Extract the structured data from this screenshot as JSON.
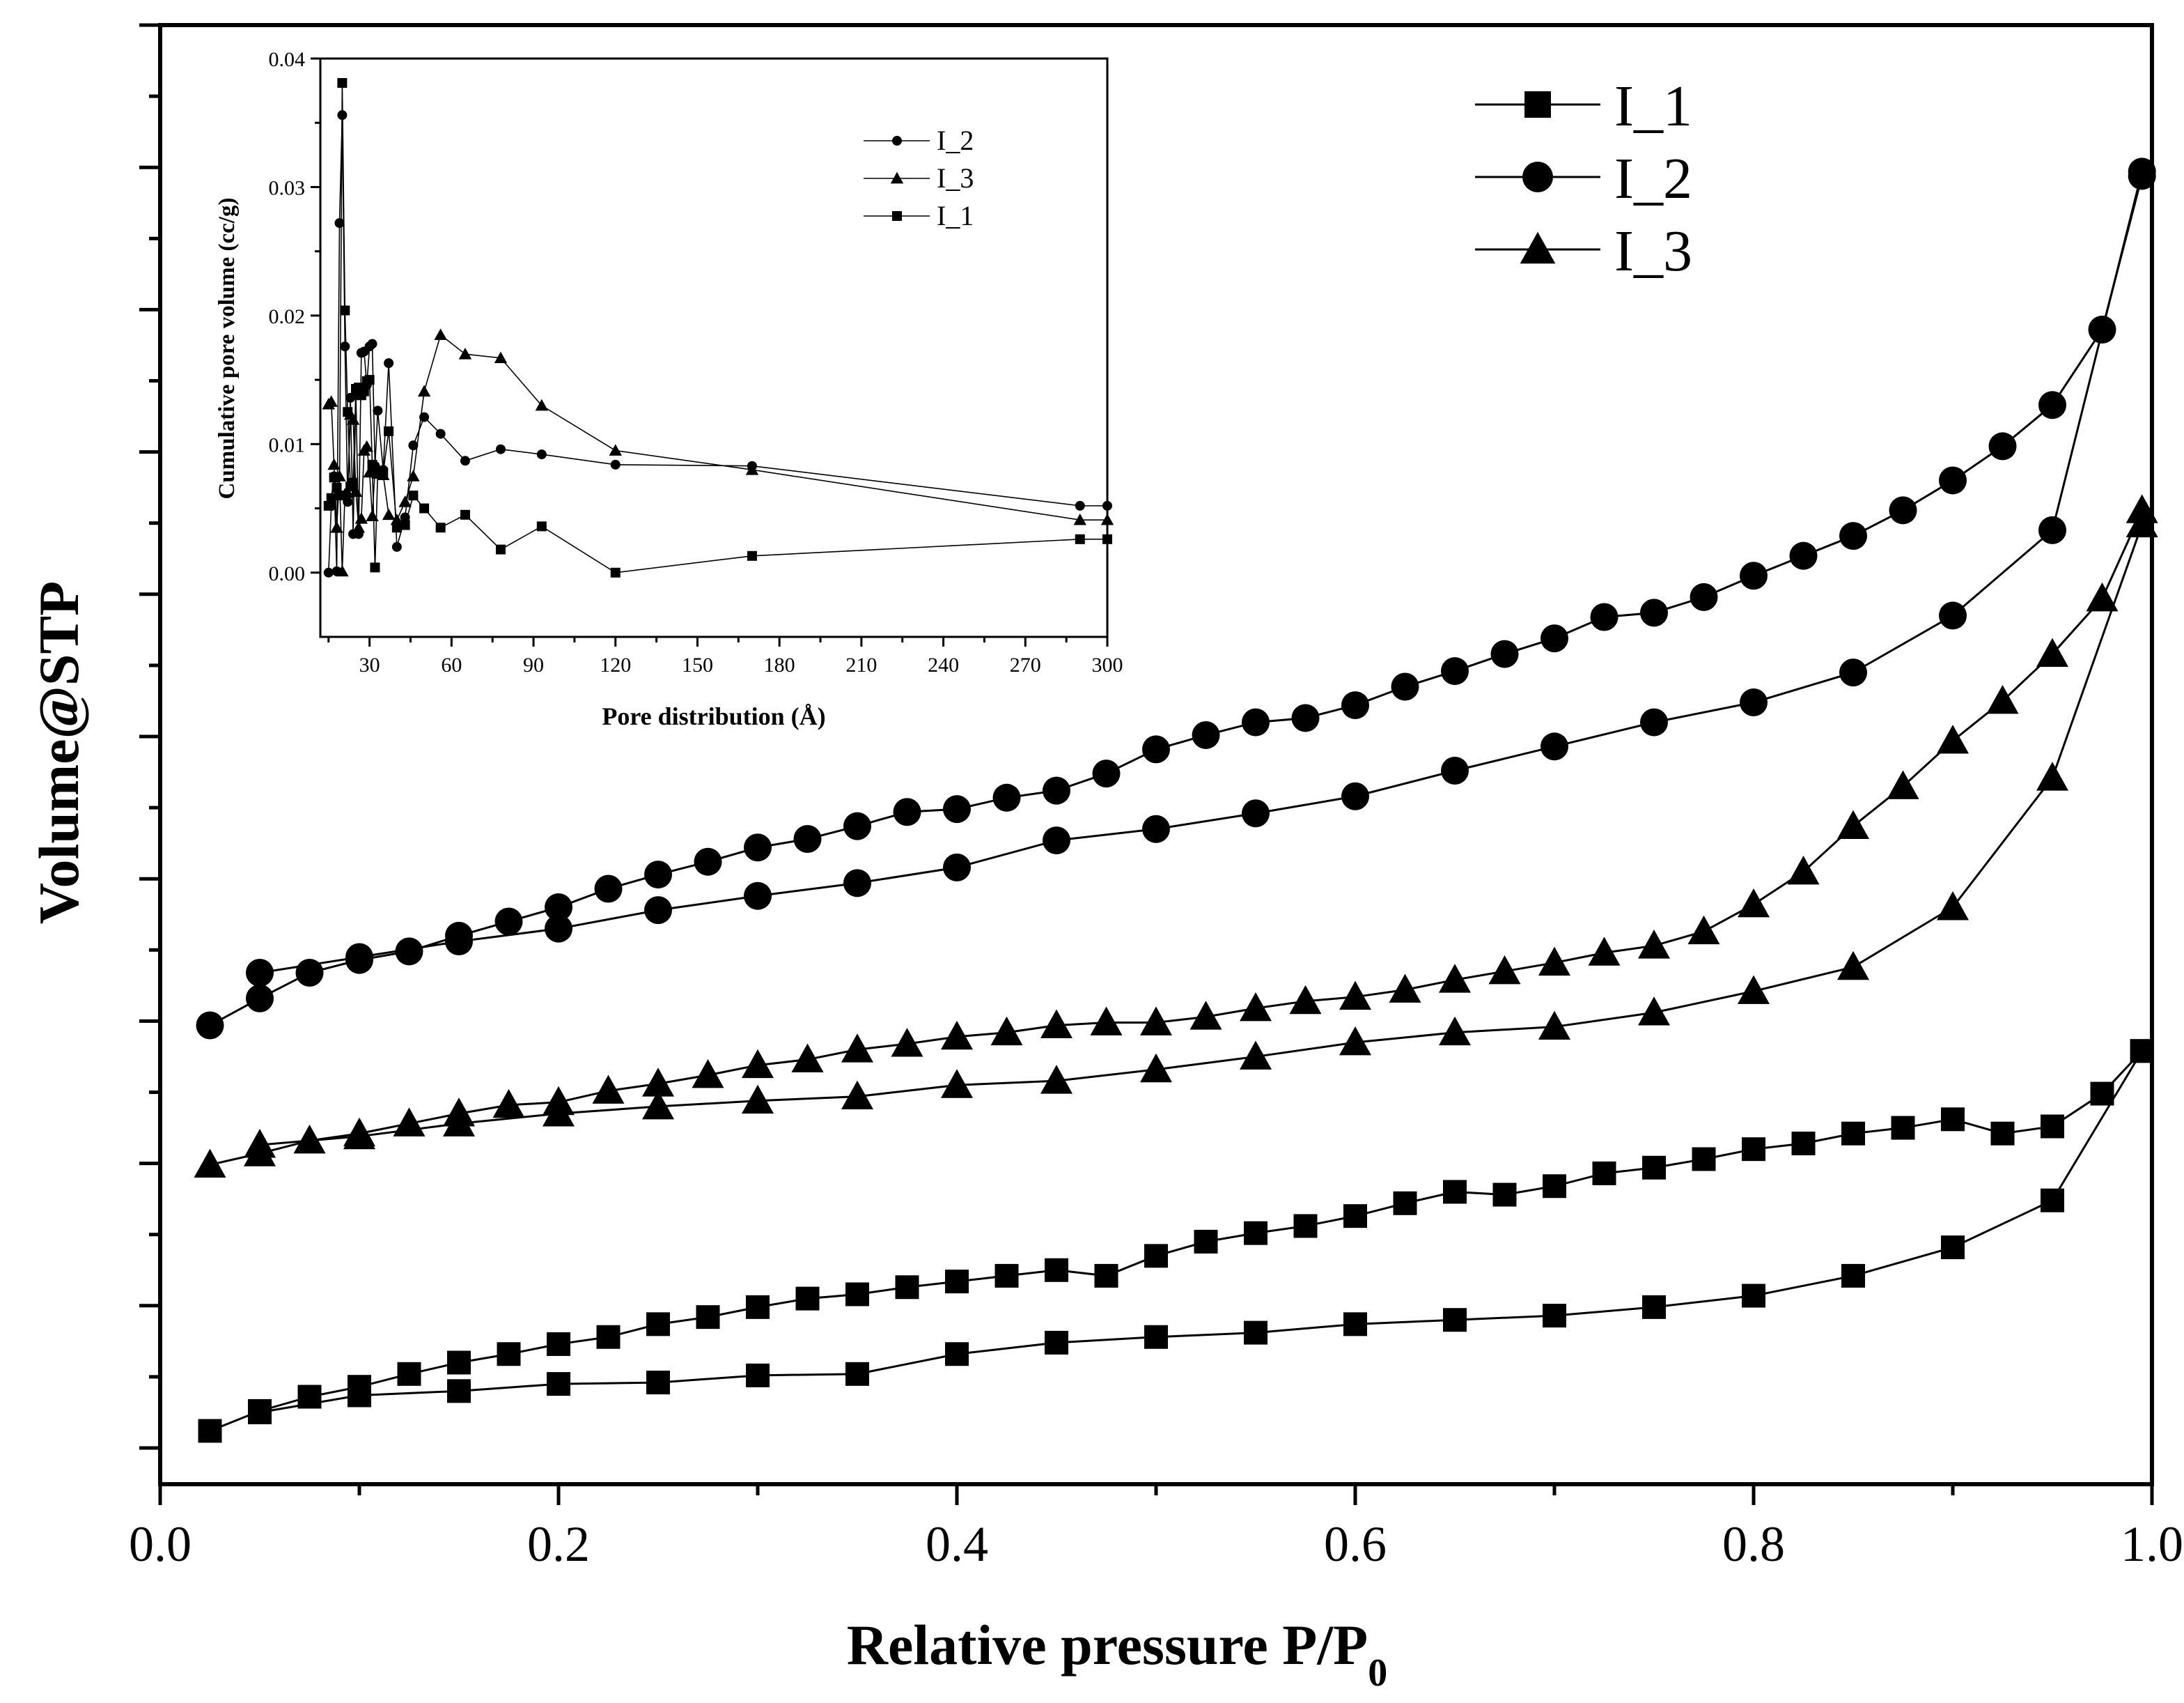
{
  "chart_data": [
    {
      "id": "main",
      "type": "scatter",
      "title": "",
      "xlabel_main": "Relative pressure P/P",
      "xlabel_sub": "0",
      "ylabel": "Volume@STP",
      "xlim": [
        0.0,
        1.0
      ],
      "ylim": [
        0,
        10
      ],
      "x_ticks": [
        "0.0",
        "0.2",
        "0.4",
        "0.6",
        "0.8",
        "1.0"
      ],
      "legend_position": "top-right",
      "series": [
        {
          "name": "I_1",
          "marker": "square",
          "adsorption": {
            "x": [
              0.025,
              0.05,
              0.075,
              0.1,
              0.125,
              0.15,
              0.175,
              0.2,
              0.225,
              0.25,
              0.275,
              0.3,
              0.325,
              0.35,
              0.375,
              0.4,
              0.425,
              0.45,
              0.475,
              0.5,
              0.525,
              0.55,
              0.575,
              0.6,
              0.625,
              0.65,
              0.675,
              0.7,
              0.725,
              0.75,
              0.775,
              0.8,
              0.825,
              0.85,
              0.875,
              0.9,
              0.925,
              0.95,
              0.975,
              0.995
            ],
            "y": [
              0.12,
              0.26,
              0.36,
              0.43,
              0.52,
              0.6,
              0.66,
              0.73,
              0.78,
              0.87,
              0.92,
              0.99,
              1.05,
              1.08,
              1.13,
              1.17,
              1.21,
              1.25,
              1.21,
              1.35,
              1.45,
              1.51,
              1.56,
              1.63,
              1.72,
              1.8,
              1.78,
              1.84,
              1.93,
              1.97,
              2.03,
              2.1,
              2.14,
              2.21,
              2.25,
              2.31,
              2.21,
              2.26,
              2.49,
              2.79
            ]
          },
          "desorption": {
            "x": [
              0.995,
              0.95,
              0.9,
              0.85,
              0.8,
              0.75,
              0.7,
              0.65,
              0.6,
              0.55,
              0.5,
              0.45,
              0.4,
              0.35,
              0.3,
              0.25,
              0.2,
              0.15,
              0.1,
              0.05
            ],
            "y": [
              2.79,
              1.74,
              1.41,
              1.21,
              1.07,
              0.99,
              0.93,
              0.9,
              0.87,
              0.81,
              0.78,
              0.74,
              0.66,
              0.52,
              0.51,
              0.46,
              0.45,
              0.4,
              0.37,
              0.25
            ]
          }
        },
        {
          "name": "I_2",
          "marker": "circle",
          "adsorption": {
            "x": [
              0.025,
              0.05,
              0.075,
              0.1,
              0.125,
              0.15,
              0.175,
              0.2,
              0.225,
              0.25,
              0.275,
              0.3,
              0.325,
              0.35,
              0.375,
              0.4,
              0.425,
              0.45,
              0.475,
              0.5,
              0.525,
              0.55,
              0.575,
              0.6,
              0.625,
              0.65,
              0.675,
              0.7,
              0.725,
              0.75,
              0.775,
              0.8,
              0.825,
              0.85,
              0.875,
              0.9,
              0.925,
              0.95,
              0.975,
              0.995
            ],
            "y": [
              2.97,
              3.16,
              3.34,
              3.43,
              3.49,
              3.6,
              3.7,
              3.8,
              3.93,
              4.03,
              4.12,
              4.22,
              4.28,
              4.37,
              4.47,
              4.49,
              4.57,
              4.62,
              4.74,
              4.91,
              5.01,
              5.1,
              5.13,
              5.22,
              5.35,
              5.46,
              5.58,
              5.69,
              5.84,
              5.87,
              5.98,
              6.13,
              6.27,
              6.41,
              6.59,
              6.8,
              7.04,
              7.33,
              7.86,
              8.94
            ]
          },
          "desorption": {
            "x": [
              0.995,
              0.95,
              0.9,
              0.85,
              0.8,
              0.75,
              0.7,
              0.65,
              0.6,
              0.55,
              0.5,
              0.45,
              0.4,
              0.35,
              0.3,
              0.25,
              0.2,
              0.15,
              0.1,
              0.05
            ],
            "y": [
              8.97,
              6.45,
              5.85,
              5.45,
              5.24,
              5.1,
              4.93,
              4.76,
              4.58,
              4.46,
              4.35,
              4.27,
              4.08,
              3.97,
              3.88,
              3.78,
              3.65,
              3.56,
              3.45,
              3.34
            ]
          }
        },
        {
          "name": "I_3",
          "marker": "triangle",
          "adsorption": {
            "x": [
              0.025,
              0.05,
              0.075,
              0.1,
              0.125,
              0.15,
              0.175,
              0.2,
              0.225,
              0.25,
              0.275,
              0.3,
              0.325,
              0.35,
              0.375,
              0.4,
              0.425,
              0.45,
              0.475,
              0.5,
              0.525,
              0.55,
              0.575,
              0.6,
              0.625,
              0.65,
              0.675,
              0.7,
              0.725,
              0.75,
              0.775,
              0.8,
              0.825,
              0.85,
              0.875,
              0.9,
              0.925,
              0.95,
              0.975,
              0.995
            ],
            "y": [
              1.99,
              2.07,
              2.16,
              2.21,
              2.28,
              2.35,
              2.41,
              2.43,
              2.51,
              2.56,
              2.62,
              2.69,
              2.73,
              2.8,
              2.84,
              2.89,
              2.92,
              2.97,
              2.99,
              2.99,
              3.03,
              3.09,
              3.14,
              3.17,
              3.22,
              3.29,
              3.35,
              3.41,
              3.48,
              3.53,
              3.63,
              3.82,
              4.05,
              4.37,
              4.65,
              4.97,
              5.25,
              5.58,
              5.97,
              6.59
            ]
          },
          "desorption": {
            "x": [
              0.995,
              0.95,
              0.9,
              0.85,
              0.8,
              0.75,
              0.7,
              0.65,
              0.6,
              0.55,
              0.5,
              0.45,
              0.4,
              0.35,
              0.3,
              0.25,
              0.2,
              0.15,
              0.1,
              0.05
            ],
            "y": [
              6.49,
              4.71,
              3.8,
              3.38,
              3.21,
              3.06,
              2.96,
              2.92,
              2.85,
              2.75,
              2.66,
              2.58,
              2.55,
              2.47,
              2.44,
              2.4,
              2.35,
              2.28,
              2.19,
              2.13
            ]
          }
        }
      ]
    },
    {
      "id": "inset",
      "type": "line",
      "title": "",
      "xlabel": "Pore distribution (Å)",
      "ylabel": "Cumulative pore volume (cc/g)",
      "xlim": [
        12,
        300
      ],
      "ylim": [
        -0.005,
        0.04
      ],
      "x_ticks": [
        "30",
        "60",
        "90",
        "120",
        "150",
        "180",
        "210",
        "240",
        "270",
        "300"
      ],
      "y_ticks": [
        "0.00",
        "0.01",
        "0.02",
        "0.03",
        "0.04"
      ],
      "legend_position": "top-right",
      "series": [
        {
          "name": "I_2",
          "marker": "circle",
          "x": [
            15,
            16,
            17,
            18,
            19,
            20,
            21,
            22,
            23,
            24,
            25,
            26,
            27,
            28,
            29,
            30,
            31,
            32,
            33,
            35,
            37,
            40,
            43,
            46,
            50,
            56,
            65,
            78,
            93,
            120,
            170,
            290,
            300
          ],
          "y": [
            0.0,
            0.0052,
            0.0075,
            0.0001,
            0.0272,
            0.0356,
            0.0176,
            0.0055,
            0.0136,
            0.003,
            0.0139,
            0.003,
            0.0171,
            0.0172,
            0.0146,
            0.0176,
            0.0178,
            0.0083,
            0.0126,
            0.008,
            0.0163,
            0.002,
            0.0043,
            0.0099,
            0.0121,
            0.0108,
            0.0087,
            0.0096,
            0.0092,
            0.0084,
            0.0083,
            0.0052,
            0.0052
          ]
        },
        {
          "name": "I_3",
          "marker": "triangle",
          "x": [
            15,
            16,
            17,
            18,
            19,
            20,
            21,
            22,
            23,
            24,
            25,
            26,
            27,
            28,
            29,
            30,
            31,
            32,
            33,
            35,
            37,
            40,
            43,
            46,
            50,
            56,
            65,
            78,
            93,
            120,
            170,
            290,
            300
          ],
          "y": [
            0.0131,
            0.0133,
            0.0084,
            0.0035,
            0.0075,
            0.0001,
            0.0061,
            0.0062,
            0.0123,
            0.0119,
            0.0063,
            0.0035,
            0.0042,
            0.0095,
            0.0098,
            0.0078,
            0.0044,
            0.008,
            0.0077,
            0.0076,
            0.0045,
            0.0041,
            0.0055,
            0.0075,
            0.0141,
            0.0185,
            0.017,
            0.0167,
            0.013,
            0.0095,
            0.008,
            0.0041,
            0.0041
          ]
        },
        {
          "name": "I_1",
          "marker": "square",
          "x": [
            15,
            16,
            17,
            18,
            19,
            20,
            21,
            22,
            23,
            24,
            25,
            26,
            27,
            28,
            29,
            30,
            31,
            32,
            33,
            35,
            37,
            40,
            43,
            46,
            50,
            56,
            65,
            78,
            93,
            120,
            170,
            290,
            300
          ],
          "y": [
            0.0052,
            0.0058,
            0.0074,
            0.0066,
            0.006,
            0.0381,
            0.0204,
            0.0125,
            0.0067,
            0.007,
            0.0143,
            0.0144,
            0.0138,
            0.0141,
            0.0149,
            0.015,
            0.0084,
            0.0004,
            0.0078,
            0.0078,
            0.011,
            0.0035,
            0.0037,
            0.006,
            0.005,
            0.0035,
            0.0045,
            0.0018,
            0.0036,
            0.0,
            0.0013,
            0.0026,
            0.0026
          ]
        }
      ]
    }
  ]
}
